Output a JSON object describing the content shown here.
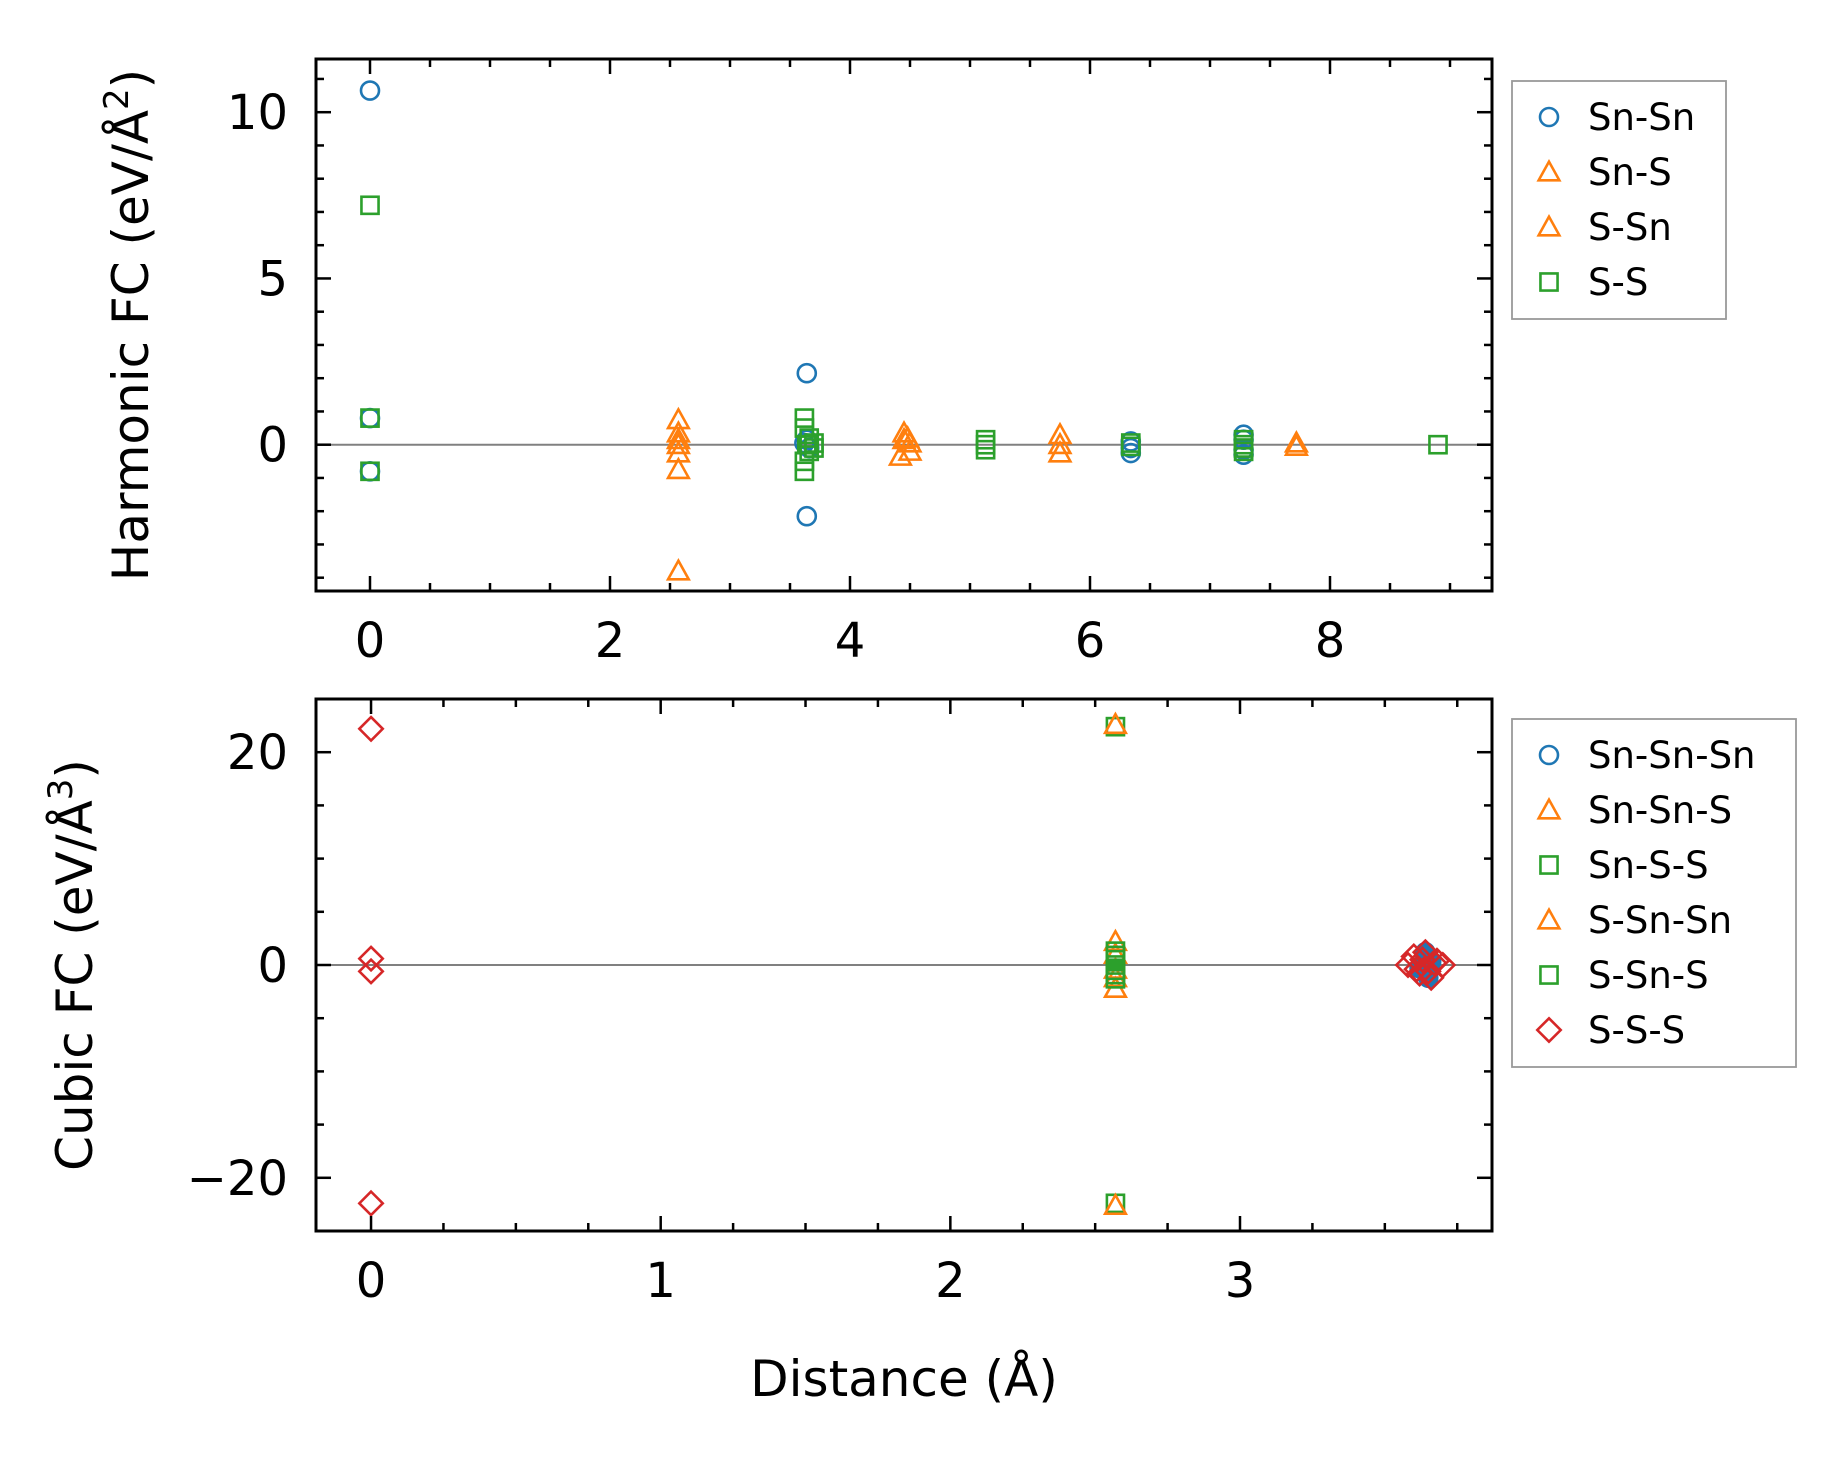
{
  "chart_data": [
    {
      "type": "scatter",
      "panel": "top",
      "xlabel": "",
      "ylabel": {
        "main": "Harmonic FC (eV/Å",
        "sup": "2",
        "close": ")"
      },
      "xlim": [
        -0.45,
        9.35
      ],
      "ylim": [
        -4.4,
        11.6
      ],
      "xticks": [
        0,
        2,
        4,
        6,
        8
      ],
      "xtick_labels": [
        "0",
        "2",
        "4",
        "6",
        "8"
      ],
      "xminor": 0.5,
      "yticks": [
        0,
        5,
        10
      ],
      "ytick_labels": [
        "0",
        "5",
        "10"
      ],
      "yminor": 1,
      "zero_line": true,
      "legend_position": "outside-right-top",
      "series": [
        {
          "name": "Sn-Sn",
          "marker": "circle",
          "color": "#1f77b4",
          "filled": false,
          "x": [
            0,
            0,
            0,
            3.64,
            3.64,
            3.64,
            3.66,
            3.62,
            6.34,
            6.34,
            6.34,
            7.28,
            7.28,
            7.28,
            7.28
          ],
          "y": [
            10.65,
            0.8,
            -0.8,
            2.15,
            -2.15,
            0.15,
            -0.1,
            0.05,
            0.1,
            -0.1,
            -0.25,
            0.3,
            0.15,
            -0.15,
            -0.3
          ]
        },
        {
          "name": "Sn-S",
          "marker": "triangle",
          "color": "#ff7f0e",
          "filled": false,
          "x": [
            2.57,
            2.57,
            2.57,
            2.57,
            2.57,
            2.57,
            2.57
          ],
          "y": [
            0.75,
            0.35,
            0.15,
            0.0,
            -0.25,
            -0.75,
            -3.8
          ]
        },
        {
          "name": "S-Sn",
          "marker": "triangle",
          "color": "#ff7f0e",
          "filled": false,
          "x": [
            4.45,
            4.45,
            4.5,
            4.5,
            4.42,
            4.48,
            5.75,
            5.75,
            5.75,
            7.72,
            7.72
          ],
          "y": [
            0.35,
            0.15,
            0.05,
            -0.2,
            -0.35,
            0.2,
            0.3,
            0.0,
            -0.25,
            0.05,
            -0.05
          ]
        },
        {
          "name": "S-S",
          "marker": "square",
          "color": "#2ca02c",
          "filled": false,
          "x": [
            0,
            0,
            0,
            3.62,
            3.62,
            3.62,
            3.62,
            3.66,
            3.66,
            3.7,
            3.7,
            3.64,
            5.13,
            5.13,
            5.13,
            6.34,
            6.34,
            7.28,
            7.28,
            7.28,
            7.28,
            8.9
          ],
          "y": [
            7.2,
            0.8,
            -0.8,
            0.8,
            0.5,
            -0.5,
            -0.8,
            0.2,
            -0.2,
            0.05,
            -0.1,
            0.0,
            0.15,
            -0.15,
            0.0,
            0.05,
            -0.05,
            0.15,
            0.0,
            -0.1,
            -0.2,
            0.0
          ]
        }
      ]
    },
    {
      "type": "scatter",
      "panel": "bottom",
      "xlabel": "Distance (Å)",
      "ylabel": {
        "main": "Cubic FC (eV/Å",
        "sup": "3",
        "close": ")"
      },
      "xlim": [
        -0.19,
        3.87
      ],
      "ylim": [
        -25,
        25
      ],
      "xticks": [
        0,
        1,
        2,
        3
      ],
      "xtick_labels": [
        "0",
        "1",
        "2",
        "3"
      ],
      "xminor": 0.25,
      "yticks": [
        -20,
        0,
        20
      ],
      "ytick_labels": [
        "−20",
        "0",
        "20"
      ],
      "yminor": 5,
      "zero_line": true,
      "legend_position": "outside-right-top",
      "series": [
        {
          "name": "Sn-Sn-Sn",
          "marker": "circle",
          "color": "#1f77b4",
          "filled": true,
          "x": [
            3.64,
            3.64,
            3.64,
            3.65,
            3.63,
            3.66,
            3.62
          ],
          "y": [
            1.2,
            0.6,
            -0.6,
            -1.2,
            0.0,
            0.3,
            -0.3
          ]
        },
        {
          "name": "Sn-Sn-S",
          "marker": "triangle",
          "color": "#ff7f0e",
          "filled": false,
          "x": [
            2.57,
            2.57,
            2.57,
            2.57,
            2.57
          ],
          "y": [
            2.2,
            1.0,
            -0.4,
            -1.2,
            -2.2
          ]
        },
        {
          "name": "Sn-S-S",
          "marker": "square",
          "color": "#2ca02c",
          "filled": false,
          "x": [
            2.57,
            2.57,
            2.57,
            2.57,
            2.57,
            2.57
          ],
          "y": [
            22.4,
            1.3,
            0.5,
            -0.5,
            -1.3,
            -22.4
          ]
        },
        {
          "name": "S-Sn-Sn",
          "marker": "triangle",
          "color": "#ff7f0e",
          "filled": false,
          "x": [
            2.57,
            2.57
          ],
          "y": [
            22.6,
            -22.6
          ]
        },
        {
          "name": "S-Sn-S",
          "marker": "square",
          "color": "#2ca02c",
          "filled": false,
          "x": [
            2.57,
            2.57,
            2.57
          ],
          "y": [
            0.9,
            0.0,
            -0.9
          ]
        },
        {
          "name": "S-S-S",
          "marker": "diamond",
          "color": "#d62728",
          "filled": false,
          "x": [
            0,
            0,
            0,
            0,
            3.58,
            3.6,
            3.62,
            3.64,
            3.66,
            3.68,
            3.7,
            3.61,
            3.63,
            3.65,
            3.67
          ],
          "y": [
            22.2,
            0.6,
            -0.6,
            -22.4,
            0.0,
            0.8,
            -0.8,
            1.2,
            -1.2,
            0.4,
            0.0,
            -0.4,
            0.5,
            -0.6,
            0.2
          ]
        }
      ]
    }
  ]
}
